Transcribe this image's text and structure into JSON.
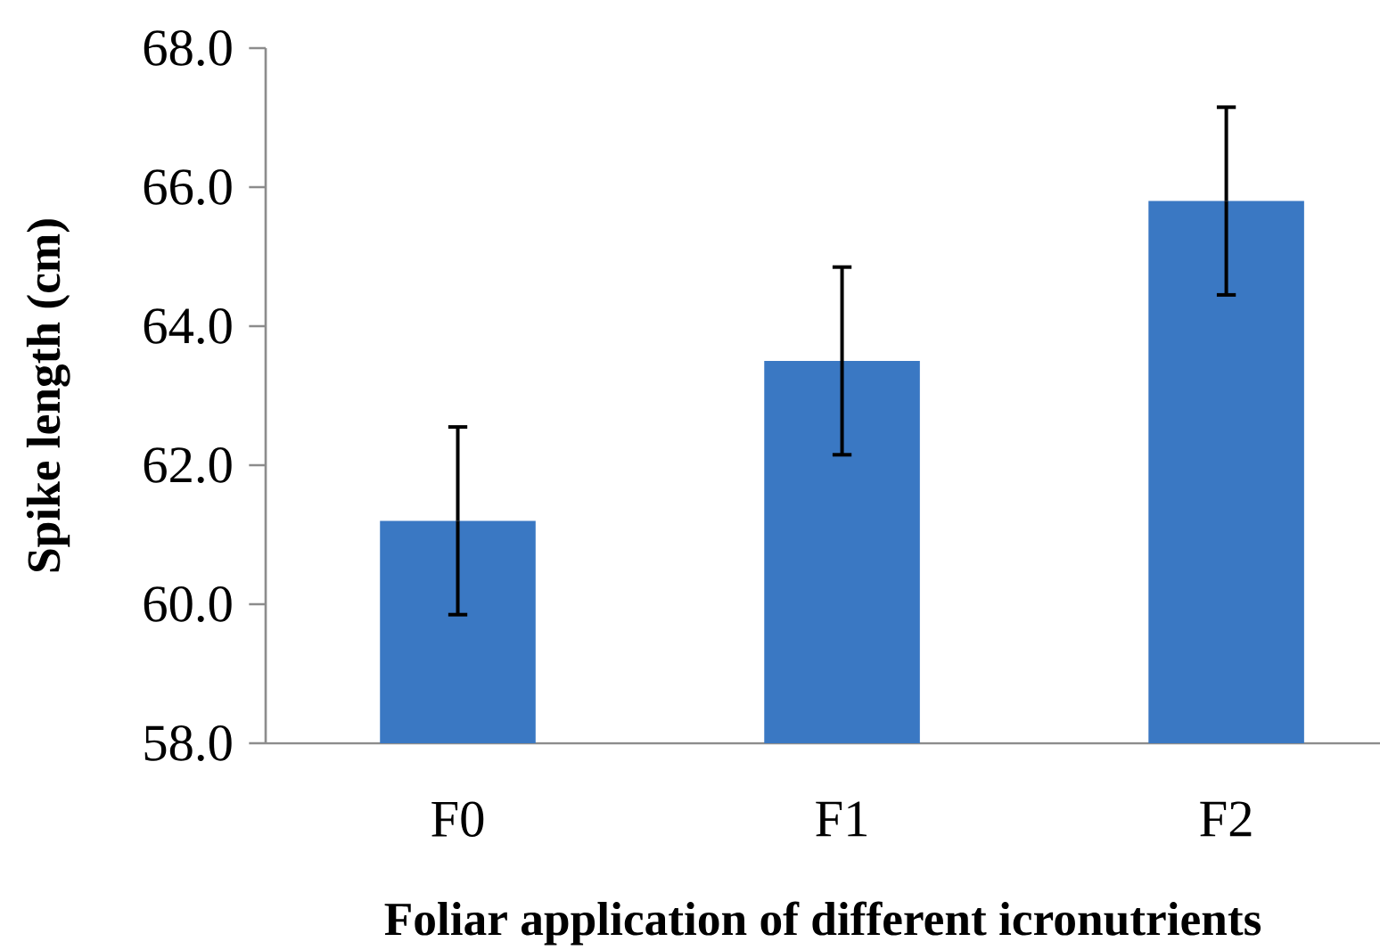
{
  "chart_data": {
    "type": "bar",
    "xlabel": "Foliar application of different icronutrients",
    "ylabel": "Spike length (cm)",
    "categories": [
      "F0",
      "F1",
      "F2"
    ],
    "values": [
      61.2,
      63.5,
      65.8
    ],
    "errors": [
      1.35,
      1.35,
      1.35
    ],
    "color": "#3a78c3",
    "ylim": [
      58,
      68
    ],
    "yticks": [
      {
        "value": 58,
        "label": "58.0"
      },
      {
        "value": 60,
        "label": "60.0"
      },
      {
        "value": 62,
        "label": "62.0"
      },
      {
        "value": 64,
        "label": "64.0"
      },
      {
        "value": 66,
        "label": "66.0"
      },
      {
        "value": 68,
        "label": "68.0"
      }
    ],
    "grid": false
  }
}
